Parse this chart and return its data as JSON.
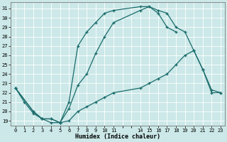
{
  "xlabel": "Humidex (Indice chaleur)",
  "bg_color": "#cce8e8",
  "grid_color": "#ffffff",
  "line_color": "#1a6b6b",
  "xlim": [
    -0.5,
    23.5
  ],
  "ylim": [
    18.5,
    31.7
  ],
  "xtick_positions": [
    0,
    1,
    2,
    3,
    4,
    5,
    6,
    7,
    8,
    9,
    10,
    11,
    14,
    15,
    16,
    17,
    18,
    19,
    20,
    21,
    22,
    23
  ],
  "xtick_labels": [
    "0",
    "1",
    "2",
    "3",
    "4",
    "5",
    "6",
    "7",
    "8",
    "9",
    "10",
    "11",
    "14",
    "15",
    "16",
    "17",
    "18",
    "19",
    "20",
    "21",
    "22",
    "23"
  ],
  "yticks": [
    19,
    20,
    21,
    22,
    23,
    24,
    25,
    26,
    27,
    28,
    29,
    30,
    31
  ],
  "line1_x": [
    0,
    1,
    2,
    3,
    4,
    5,
    6,
    7,
    8,
    9,
    10,
    11,
    14,
    15,
    16,
    17,
    18
  ],
  "line1_y": [
    22.5,
    21.0,
    19.8,
    19.2,
    18.8,
    18.8,
    21.0,
    27.0,
    28.5,
    29.5,
    30.5,
    30.8,
    31.2,
    31.2,
    30.5,
    29.0,
    28.5
  ],
  "line2_x": [
    0,
    2,
    3,
    4,
    5,
    6,
    7,
    8,
    9,
    10,
    11,
    14,
    15,
    16,
    17,
    18,
    19,
    20,
    21,
    22,
    23
  ],
  "line2_y": [
    22.5,
    20.0,
    19.2,
    19.2,
    18.8,
    20.3,
    22.8,
    24.0,
    26.2,
    28.0,
    29.5,
    30.8,
    31.2,
    30.8,
    30.5,
    29.0,
    28.5,
    26.5,
    24.5,
    22.0,
    22.0
  ],
  "line3_x": [
    0,
    2,
    3,
    4,
    5,
    6,
    7,
    8,
    9,
    10,
    11,
    14,
    15,
    16,
    17,
    18,
    19,
    20,
    21,
    22,
    23
  ],
  "line3_y": [
    22.5,
    20.0,
    19.2,
    19.2,
    18.8,
    19.0,
    20.0,
    20.5,
    21.0,
    21.5,
    22.0,
    22.5,
    23.0,
    23.5,
    24.0,
    25.0,
    26.0,
    26.5,
    24.5,
    22.3,
    22.0
  ]
}
